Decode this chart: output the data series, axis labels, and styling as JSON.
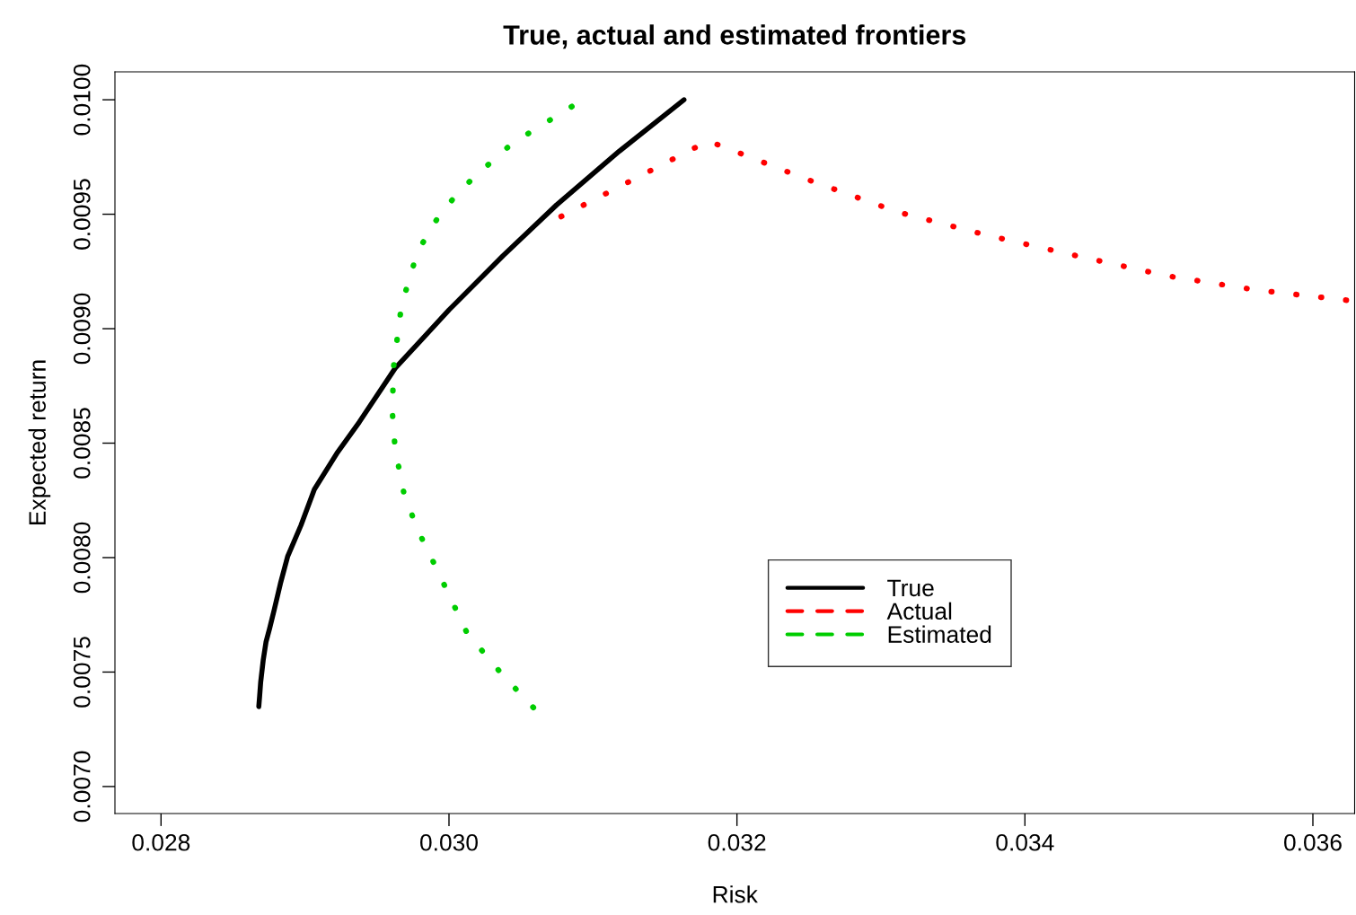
{
  "chart_data": {
    "type": "line",
    "title": "True, actual and estimated frontiers",
    "xlabel": "Risk",
    "ylabel": "Expected return",
    "xlim": [
      0.02768,
      0.03629
    ],
    "ylim": [
      0.006882,
      0.010122
    ],
    "xticks": [
      {
        "value": 0.028,
        "label": "0.028"
      },
      {
        "value": 0.03,
        "label": "0.030"
      },
      {
        "value": 0.032,
        "label": "0.032"
      },
      {
        "value": 0.034,
        "label": "0.034"
      },
      {
        "value": 0.036,
        "label": "0.036"
      }
    ],
    "yticks": [
      {
        "value": 0.007,
        "label": "0.0070"
      },
      {
        "value": 0.0075,
        "label": "0.0075"
      },
      {
        "value": 0.008,
        "label": "0.0080"
      },
      {
        "value": 0.0085,
        "label": "0.0085"
      },
      {
        "value": 0.009,
        "label": "0.0090"
      },
      {
        "value": 0.0095,
        "label": "0.0095"
      },
      {
        "value": 0.01,
        "label": "0.0100"
      }
    ],
    "grid": false,
    "legend": "center",
    "series": [
      {
        "name": "True",
        "color": "#000000",
        "line_style": "solid",
        "x": [
          0.028679,
          0.028685,
          0.028692,
          0.02871,
          0.028729,
          0.028754,
          0.028785,
          0.028829,
          0.028879,
          0.028972,
          0.029065,
          0.029221,
          0.029377,
          0.029626,
          0.029799,
          0.03,
          0.030374,
          0.030748,
          0.031184,
          0.031632
        ],
        "values": [
          0.007349,
          0.007396,
          0.007455,
          0.007553,
          0.007631,
          0.00769,
          0.007769,
          0.007886,
          0.008004,
          0.008141,
          0.008298,
          0.008455,
          0.008592,
          0.008827,
          0.008945,
          0.009082,
          0.009318,
          0.009541,
          0.009776,
          0.01
        ]
      },
      {
        "name": "Actual",
        "color": "#ff0000",
        "line_style": "dotted",
        "x": [
          0.030779,
          0.031801,
          0.032492,
          0.033115,
          0.033738,
          0.034361,
          0.034984,
          0.035607,
          0.03624
        ],
        "values": [
          0.00949,
          0.00982,
          0.009651,
          0.00951,
          0.009408,
          0.009318,
          0.009231,
          0.009169,
          0.009124
        ]
      },
      {
        "name": "Estimated",
        "color": "#00cd00",
        "line_style": "dotted",
        "x": [
          0.030586,
          0.030374,
          0.030125,
          0.029919,
          0.029782,
          0.029688,
          0.029626,
          0.029607,
          0.029614,
          0.02967,
          0.029782,
          0.02995,
          0.030156,
          0.030436,
          0.03086
        ],
        "values": [
          0.007345,
          0.007486,
          0.007671,
          0.007945,
          0.008122,
          0.008278,
          0.008475,
          0.008631,
          0.008827,
          0.009102,
          0.009337,
          0.009514,
          0.009651,
          0.009808,
          0.009973
        ]
      }
    ]
  }
}
